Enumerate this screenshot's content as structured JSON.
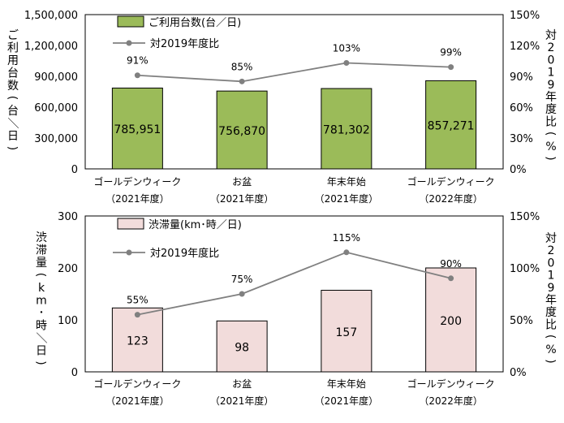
{
  "chart_data": [
    {
      "type": "bar",
      "categories": [
        [
          "ゴールデンウィーク",
          "（2021年度）"
        ],
        [
          "お盆",
          "（2021年度）"
        ],
        [
          "年末年始",
          "（2021年度）"
        ],
        [
          "ゴールデンウィーク",
          "（2022年度）"
        ]
      ],
      "series": [
        {
          "name": "ご利用台数(台／日)",
          "type": "bar",
          "axis": "left",
          "values": [
            785951,
            756870,
            781302,
            857271
          ],
          "labels": [
            "785,951",
            "756,870",
            "781,302",
            "857,271"
          ],
          "color": "#9BBB59"
        },
        {
          "name": "対2019年度比",
          "type": "line",
          "axis": "right",
          "values": [
            91,
            85,
            103,
            99
          ],
          "labels": [
            "91%",
            "85%",
            "103%",
            "99%"
          ],
          "color": "#808080"
        }
      ],
      "ylabel": "ご利用台数(台／日)",
      "ylabel2": "対2019年度比(%)",
      "ylim": [
        0,
        1500000
      ],
      "y2lim": [
        0,
        150
      ],
      "yticks": [
        0,
        300000,
        600000,
        900000,
        1200000,
        1500000
      ],
      "ytick_labels": [
        "0",
        "300,000",
        "600,000",
        "900,000",
        "1,200,000",
        "1,500,000"
      ],
      "y2ticks": [
        0,
        30,
        60,
        90,
        120,
        150
      ],
      "y2tick_labels": [
        "0%",
        "30%",
        "60%",
        "90%",
        "120%",
        "150%"
      ],
      "legend": "top-left",
      "grid": false
    },
    {
      "type": "bar",
      "categories": [
        [
          "ゴールデンウィーク",
          "（2021年度）"
        ],
        [
          "お盆",
          "（2021年度）"
        ],
        [
          "年末年始",
          "（2021年度）"
        ],
        [
          "ゴールデンウィーク",
          "（2022年度）"
        ]
      ],
      "series": [
        {
          "name": "渋滞量(km･時／日)",
          "type": "bar",
          "axis": "left",
          "values": [
            123,
            98,
            157,
            200
          ],
          "labels": [
            "123",
            "98",
            "157",
            "200"
          ],
          "color": "#F2DCDB"
        },
        {
          "name": "対2019年度比",
          "type": "line",
          "axis": "right",
          "values": [
            55,
            75,
            115,
            90
          ],
          "labels": [
            "55%",
            "75%",
            "115%",
            "90%"
          ],
          "color": "#808080"
        }
      ],
      "ylabel": "渋滞量(km･時／日)",
      "ylabel2": "対2019年度比(%)",
      "ylim": [
        0,
        300
      ],
      "y2lim": [
        0,
        150
      ],
      "yticks": [
        0,
        100,
        200,
        300
      ],
      "ytick_labels": [
        "0",
        "100",
        "200",
        "300"
      ],
      "y2ticks": [
        0,
        50,
        100,
        150
      ],
      "y2tick_labels": [
        "0%",
        "50%",
        "100%",
        "150%"
      ],
      "legend": "top-left",
      "grid": false
    }
  ]
}
